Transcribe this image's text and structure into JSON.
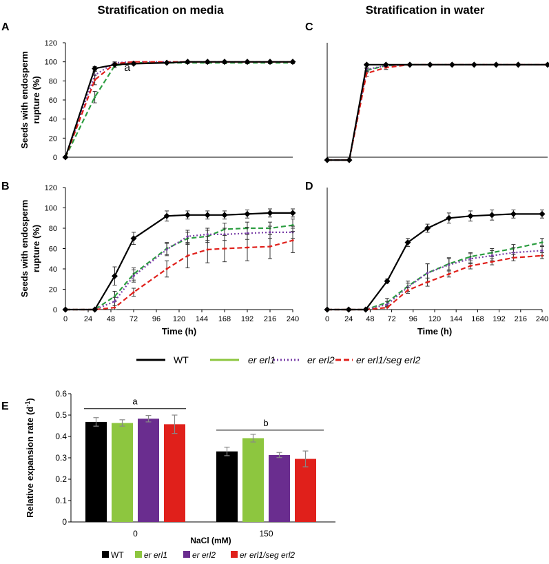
{
  "headings": {
    "left": "Stratification on media",
    "right": "Stratification in water"
  },
  "colors": {
    "WT": "#000000",
    "er erl1": "#2a9d3f",
    "er erl2": "#7a3fa8",
    "er erl1/seg erl2": "#e0201b",
    "bar_WT": "#000000",
    "bar_er erl1": "#8dc63f",
    "bar_er erl2": "#6a2d8f",
    "bar_er erl1/seg erl2": "#e0201b"
  },
  "legend_top": [
    "WT",
    "er erl1",
    "er erl2",
    "er erl1/seg erl2"
  ],
  "legend_bottom": [
    "WT",
    "er erl1",
    "er erl2",
    "er erl1/seg erl2"
  ],
  "chart_data": [
    {
      "panel": "A",
      "type": "line",
      "title": "",
      "ylabel": "Seeds with endosperm rupture (%)",
      "xlabel": "",
      "ylim": [
        0,
        120
      ],
      "yticks": [
        0,
        20,
        40,
        60,
        80,
        100,
        120
      ],
      "xlim": [
        0,
        240
      ],
      "xticks": [],
      "annotation": "a",
      "series": [
        {
          "name": "WT",
          "x": [
            0,
            31,
            52,
            72,
            107,
            129,
            150,
            168,
            192,
            216,
            240
          ],
          "y": [
            0,
            93,
            97,
            98,
            99,
            100,
            100,
            100,
            100,
            100,
            100
          ],
          "err": [
            0,
            2,
            1,
            1,
            1,
            0,
            0,
            0,
            0,
            0,
            0
          ]
        },
        {
          "name": "er erl1",
          "x": [
            0,
            31,
            52,
            72,
            107,
            129,
            150,
            168,
            192,
            216,
            240
          ],
          "y": [
            0,
            63,
            96,
            99,
            99,
            99,
            99,
            99,
            99,
            99,
            99
          ],
          "err": [
            0,
            6,
            2,
            1,
            1,
            1,
            1,
            1,
            1,
            1,
            1
          ]
        },
        {
          "name": "er erl2",
          "x": [
            0,
            31,
            52,
            72,
            107,
            129,
            150,
            168,
            192,
            216,
            240
          ],
          "y": [
            0,
            86,
            99,
            100,
            100,
            100,
            100,
            100,
            100,
            100,
            100
          ],
          "err": [
            0,
            4,
            1,
            0,
            0,
            0,
            0,
            0,
            0,
            0,
            0
          ]
        },
        {
          "name": "er erl1/seg erl2",
          "x": [
            0,
            31,
            52,
            72,
            107,
            129,
            150,
            168,
            192,
            216,
            240
          ],
          "y": [
            0,
            81,
            98,
            100,
            100,
            100,
            100,
            100,
            100,
            100,
            100
          ],
          "err": [
            0,
            5,
            1,
            0,
            0,
            0,
            0,
            0,
            0,
            0,
            0
          ]
        }
      ]
    },
    {
      "panel": "B",
      "type": "line",
      "title": "",
      "ylabel": "Seeds with endosperm rupture (%)",
      "xlabel": "Time (h)",
      "ylim": [
        0,
        120
      ],
      "yticks": [
        0,
        20,
        40,
        60,
        80,
        100,
        120
      ],
      "xlim": [
        0,
        240
      ],
      "xticks": [
        0,
        24,
        48,
        72,
        96,
        120,
        144,
        168,
        192,
        216,
        240
      ],
      "series": [
        {
          "name": "WT",
          "x": [
            0,
            31,
            52,
            72,
            107,
            129,
            150,
            168,
            192,
            216,
            240
          ],
          "y": [
            0,
            0,
            33,
            70,
            92,
            93,
            93,
            93,
            94,
            95,
            95
          ],
          "err": [
            0,
            0,
            9,
            6,
            5,
            4,
            4,
            4,
            4,
            4,
            4
          ]
        },
        {
          "name": "er erl1",
          "x": [
            0,
            31,
            52,
            72,
            107,
            129,
            150,
            168,
            192,
            216,
            240
          ],
          "y": [
            0,
            0,
            13,
            35,
            60,
            70,
            72,
            79,
            80,
            80,
            83
          ],
          "err": [
            0,
            0,
            5,
            6,
            6,
            6,
            6,
            6,
            6,
            6,
            6
          ]
        },
        {
          "name": "er erl2",
          "x": [
            0,
            31,
            52,
            72,
            107,
            129,
            150,
            168,
            192,
            216,
            240
          ],
          "y": [
            0,
            0,
            8,
            33,
            59,
            72,
            74,
            74,
            75,
            76,
            76
          ],
          "err": [
            0,
            0,
            4,
            6,
            6,
            6,
            6,
            6,
            6,
            6,
            6
          ]
        },
        {
          "name": "er erl1/seg erl2",
          "x": [
            0,
            31,
            52,
            72,
            107,
            129,
            150,
            168,
            192,
            216,
            240
          ],
          "y": [
            0,
            0,
            2,
            17,
            40,
            53,
            59,
            60,
            61,
            62,
            68
          ],
          "err": [
            0,
            0,
            2,
            4,
            8,
            12,
            13,
            13,
            13,
            12,
            12
          ]
        }
      ]
    },
    {
      "panel": "C",
      "type": "line",
      "title": "",
      "ylabel": "",
      "xlabel": "",
      "ylim": [
        0,
        120
      ],
      "yticks": [],
      "xlim": [
        0,
        240
      ],
      "xticks": [],
      "series": [
        {
          "name": "WT",
          "x": [
            0,
            24,
            43,
            64,
            90,
            112,
            136,
            160,
            184,
            208,
            240
          ],
          "y": [
            -3,
            -3,
            97,
            97,
            97,
            97,
            97,
            97,
            97,
            97,
            97
          ],
          "err": [
            0,
            0,
            1,
            0,
            0,
            0,
            0,
            0,
            0,
            0,
            0
          ]
        },
        {
          "name": "er erl1",
          "x": [
            0,
            24,
            43,
            64,
            90,
            112,
            136,
            160,
            184,
            208,
            240
          ],
          "y": [
            -3,
            -3,
            91,
            96,
            97,
            97,
            97,
            97,
            97,
            97,
            97
          ],
          "err": [
            0,
            0,
            2,
            1,
            0,
            0,
            0,
            0,
            0,
            0,
            0
          ]
        },
        {
          "name": "er erl2",
          "x": [
            0,
            24,
            43,
            64,
            90,
            112,
            136,
            160,
            184,
            208,
            240
          ],
          "y": [
            -3,
            -3,
            92,
            96,
            97,
            97,
            97,
            97,
            97,
            97,
            97
          ],
          "err": [
            0,
            0,
            2,
            1,
            0,
            0,
            0,
            0,
            0,
            0,
            0
          ]
        },
        {
          "name": "er erl1/seg erl2",
          "x": [
            0,
            24,
            43,
            64,
            90,
            112,
            136,
            160,
            184,
            208,
            240
          ],
          "y": [
            -3,
            -3,
            88,
            94,
            97,
            97,
            97,
            97,
            97,
            97,
            97
          ],
          "err": [
            0,
            0,
            3,
            2,
            0,
            0,
            0,
            0,
            0,
            0,
            0
          ]
        }
      ]
    },
    {
      "panel": "D",
      "type": "line",
      "title": "",
      "ylabel": "",
      "xlabel": "Time (h)",
      "ylim": [
        0,
        120
      ],
      "yticks": [],
      "xlim": [
        0,
        240
      ],
      "xticks": [
        0,
        24,
        48,
        72,
        96,
        120,
        144,
        168,
        192,
        216,
        240
      ],
      "series": [
        {
          "name": "WT",
          "x": [
            0,
            24,
            43,
            67,
            90,
            112,
            136,
            160,
            184,
            208,
            240
          ],
          "y": [
            0,
            0,
            0,
            28,
            66,
            80,
            90,
            92,
            93,
            94,
            94
          ],
          "err": [
            0,
            0,
            0,
            2,
            4,
            4,
            5,
            5,
            5,
            4,
            4
          ]
        },
        {
          "name": "er erl1",
          "x": [
            0,
            24,
            43,
            67,
            90,
            112,
            136,
            160,
            184,
            208,
            240
          ],
          "y": [
            0,
            0,
            0,
            7,
            23,
            36,
            45,
            52,
            56,
            60,
            66
          ],
          "err": [
            0,
            0,
            0,
            4,
            5,
            9,
            6,
            4,
            4,
            4,
            4
          ]
        },
        {
          "name": "er erl2",
          "x": [
            0,
            24,
            43,
            67,
            90,
            112,
            136,
            160,
            184,
            208,
            240
          ],
          "y": [
            0,
            0,
            0,
            5,
            22,
            36,
            44,
            50,
            53,
            56,
            58
          ],
          "err": [
            0,
            0,
            0,
            3,
            4,
            9,
            6,
            5,
            5,
            5,
            5
          ]
        },
        {
          "name": "er erl1/seg erl2",
          "x": [
            0,
            24,
            43,
            67,
            90,
            112,
            136,
            160,
            184,
            208,
            240
          ],
          "y": [
            0,
            0,
            0,
            2,
            19,
            27,
            35,
            43,
            47,
            51,
            53
          ],
          "err": [
            0,
            0,
            0,
            2,
            3,
            4,
            3,
            3,
            3,
            3,
            3
          ]
        }
      ]
    },
    {
      "panel": "E",
      "type": "bar",
      "title": "",
      "ylabel": "Relative expansion rate (d-1)",
      "xlabel": "NaCl (mM)",
      "categories": [
        "0",
        "150"
      ],
      "ylim": [
        0,
        0.6
      ],
      "yticks": [
        0,
        0.1,
        0.2,
        0.3,
        0.4,
        0.5,
        0.6
      ],
      "series": [
        {
          "name": "WT",
          "values": [
            0.468,
            0.33
          ],
          "err": [
            0.02,
            0.02
          ]
        },
        {
          "name": "er erl1",
          "values": [
            0.463,
            0.392
          ],
          "err": [
            0.015,
            0.018
          ]
        },
        {
          "name": "er erl2",
          "values": [
            0.483,
            0.313
          ],
          "err": [
            0.015,
            0.012
          ]
        },
        {
          "name": "er erl1/seg erl2",
          "values": [
            0.457,
            0.295
          ],
          "err": [
            0.043,
            0.037
          ]
        }
      ],
      "annotations": [
        {
          "text": "a",
          "group": "0"
        },
        {
          "text": "b",
          "group": "150"
        }
      ]
    }
  ],
  "panel_labels": [
    "A",
    "B",
    "C",
    "D",
    "E"
  ]
}
